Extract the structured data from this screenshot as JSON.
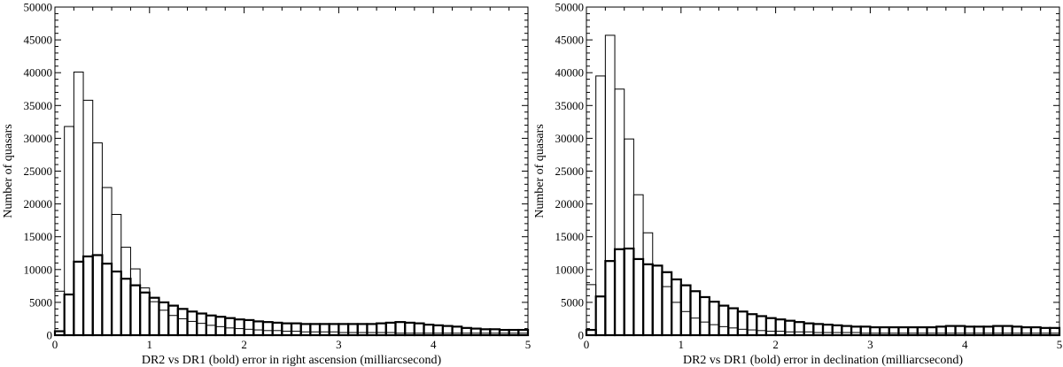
{
  "chart_data": [
    {
      "type": "histogram",
      "title": "",
      "xlabel": "DR2 vs DR1 (bold) error in right ascension (milliarcsecond)",
      "ylabel": "Number of quasars",
      "xlim": [
        0,
        5
      ],
      "ylim": [
        0,
        50000
      ],
      "bin_width": 0.1,
      "x_ticks": [
        "0",
        "1",
        "2",
        "3",
        "4",
        "5"
      ],
      "y_ticks": [
        "0",
        "5000",
        "10000",
        "15000",
        "20000",
        "25000",
        "30000",
        "35000",
        "40000",
        "45000",
        "50000"
      ],
      "grid": false,
      "legend": "none",
      "series": [
        {
          "style": "thin",
          "values": [
            6700,
            31800,
            40100,
            35800,
            29300,
            22500,
            18400,
            13400,
            10100,
            7200,
            5100,
            3800,
            3000,
            2500,
            2100,
            1800,
            1500,
            1300,
            1100,
            1000,
            900,
            800,
            700,
            700,
            600,
            600,
            500,
            500,
            500,
            500,
            400,
            400,
            400,
            400,
            400,
            400,
            300,
            300,
            300,
            300,
            300,
            300,
            300,
            300,
            300,
            300,
            300,
            300,
            300,
            300
          ]
        },
        {
          "style": "bold",
          "values": [
            600,
            6200,
            11200,
            12000,
            12200,
            10900,
            9700,
            8600,
            7600,
            6500,
            5700,
            5000,
            4500,
            4000,
            3600,
            3300,
            3000,
            2800,
            2600,
            2400,
            2300,
            2100,
            2000,
            1900,
            1800,
            1800,
            1700,
            1700,
            1700,
            1700,
            1700,
            1700,
            1700,
            1700,
            1800,
            1900,
            2000,
            1900,
            1800,
            1600,
            1500,
            1400,
            1300,
            1100,
            1000,
            900,
            900,
            800,
            800,
            800
          ]
        }
      ]
    },
    {
      "type": "histogram",
      "title": "",
      "xlabel": "DR2 vs DR1 (bold) error in declination (milliarcsecond)",
      "ylabel": "Number of quasars",
      "xlim": [
        0,
        5
      ],
      "ylim": [
        0,
        50000
      ],
      "bin_width": 0.1,
      "x_ticks": [
        "0",
        "1",
        "2",
        "3",
        "4",
        "5"
      ],
      "y_ticks": [
        "0",
        "5000",
        "10000",
        "15000",
        "20000",
        "25000",
        "30000",
        "35000",
        "40000",
        "45000",
        "50000"
      ],
      "grid": false,
      "legend": "none",
      "series": [
        {
          "style": "thin",
          "values": [
            7700,
            39500,
            45700,
            37500,
            29900,
            21400,
            15600,
            10600,
            7400,
            5000,
            3600,
            2600,
            2000,
            1600,
            1300,
            1100,
            900,
            800,
            700,
            600,
            600,
            500,
            500,
            500,
            400,
            400,
            400,
            400,
            400,
            300,
            300,
            300,
            300,
            300,
            300,
            300,
            300,
            300,
            300,
            300,
            300,
            300,
            300,
            300,
            300,
            300,
            300,
            300,
            300,
            300
          ]
        },
        {
          "style": "bold",
          "values": [
            800,
            5900,
            11300,
            13100,
            13200,
            11600,
            10800,
            10600,
            9600,
            8500,
            7600,
            6700,
            5800,
            5100,
            4500,
            4100,
            3600,
            3200,
            2900,
            2600,
            2400,
            2200,
            2000,
            1800,
            1700,
            1600,
            1500,
            1400,
            1300,
            1300,
            1200,
            1200,
            1200,
            1200,
            1200,
            1200,
            1200,
            1300,
            1400,
            1400,
            1300,
            1300,
            1300,
            1400,
            1400,
            1300,
            1200,
            1200,
            1100,
            1100
          ]
        }
      ]
    }
  ]
}
